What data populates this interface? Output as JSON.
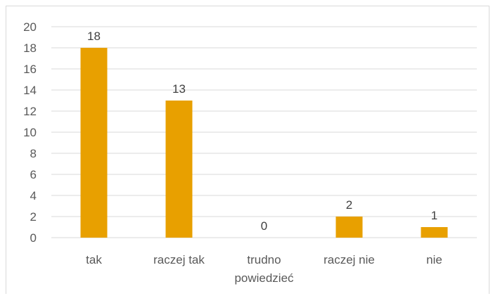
{
  "chart_data": {
    "type": "bar",
    "categories": [
      "tak",
      "raczej tak",
      "trudno powiedzieć",
      "raczej nie",
      "nie"
    ],
    "category_lines": [
      [
        "tak"
      ],
      [
        "raczej tak"
      ],
      [
        "trudno",
        "powiedzieć"
      ],
      [
        "raczej nie"
      ],
      [
        "nie"
      ]
    ],
    "values": [
      18,
      13,
      0,
      2,
      1
    ],
    "data_labels": [
      "18",
      "13",
      "0",
      "2",
      "1"
    ],
    "ylim": [
      0,
      20
    ],
    "yticks": [
      0,
      2,
      4,
      6,
      8,
      10,
      12,
      14,
      16,
      18,
      20
    ],
    "bar_color": "#E8A000",
    "grid_color": "#d9d9d9",
    "grid": true,
    "legend": "none"
  }
}
